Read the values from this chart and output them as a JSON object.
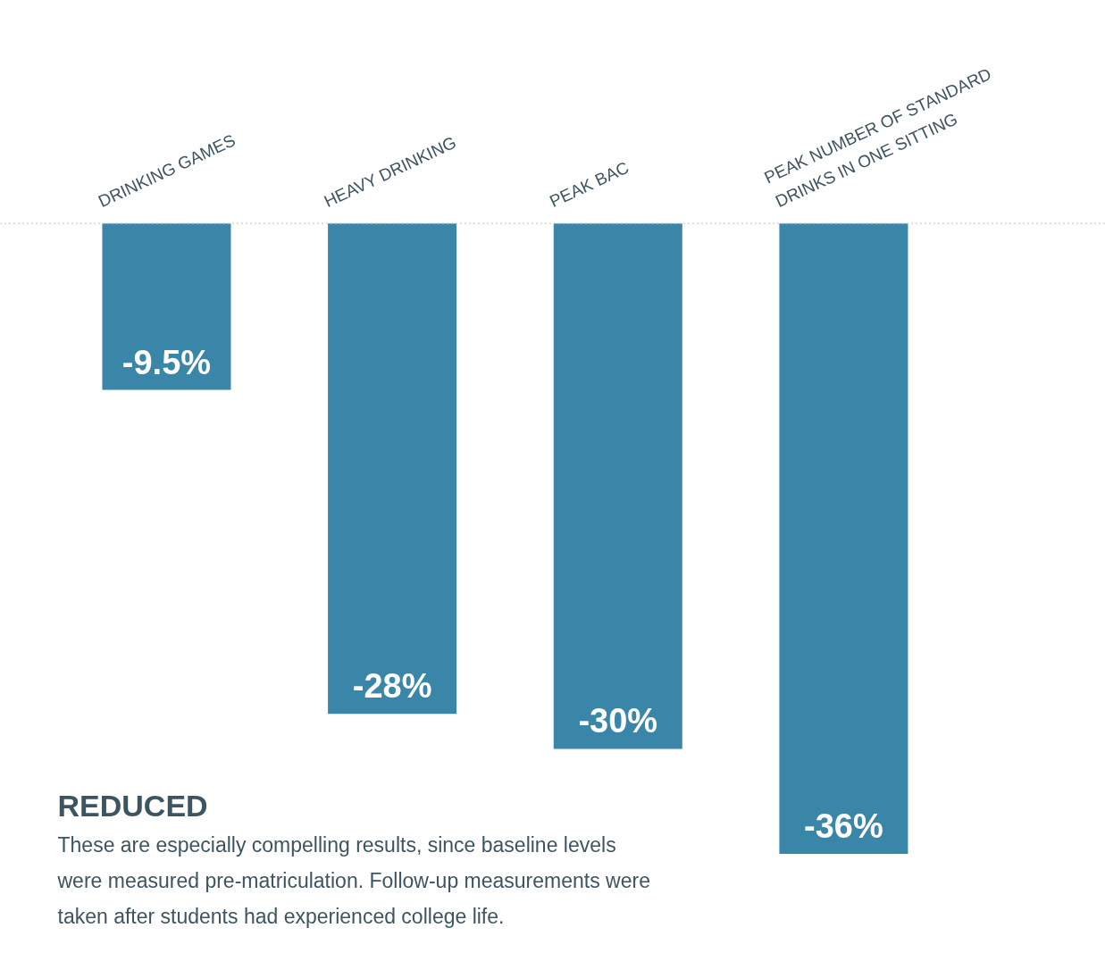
{
  "chart_data": {
    "type": "bar",
    "categories": [
      "DRINKING GAMES",
      "HEAVY DRINKING",
      "PEAK BAC",
      "PEAK NUMBER OF STANDARD DRINKS IN ONE SITTING"
    ],
    "values": [
      -9.5,
      -28,
      -30,
      -36
    ],
    "value_labels": [
      "-9.5%",
      "-28%",
      "-30%",
      "-36%"
    ],
    "color": "#3a86a9",
    "annotations": [
      "REDUCED",
      "These are especially compelling results, since baseline levels were measured pre-matriculation. Follow-up measurements were taken after students had experienced college life."
    ]
  }
}
